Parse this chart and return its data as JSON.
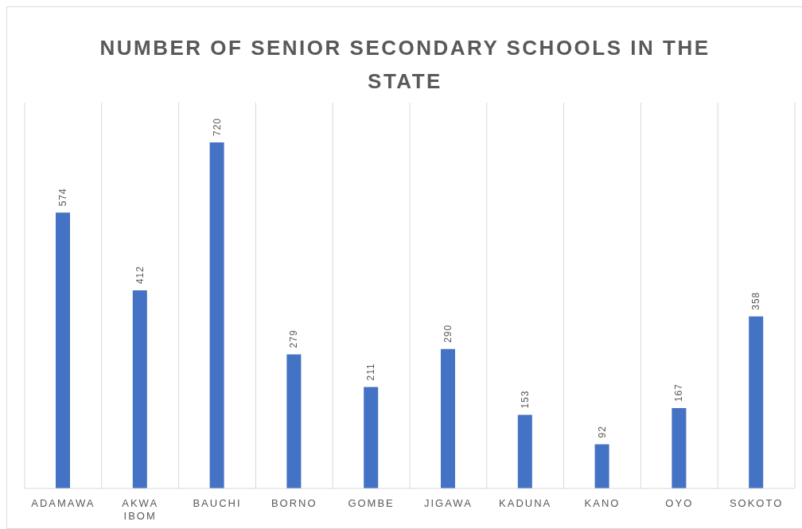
{
  "chart_data": {
    "type": "bar",
    "title": "NUMBER OF SENIOR SECONDARY SCHOOLS IN THE STATE",
    "categories": [
      "ADAMAWA",
      "AKWA IBOM",
      "BAUCHI",
      "BORNO",
      "GOMBE",
      "JIGAWA",
      "KADUNA",
      "KANO",
      "OYO",
      "SOKOTO"
    ],
    "values": [
      574,
      412,
      720,
      279,
      211,
      290,
      153,
      92,
      167,
      358
    ],
    "color": "#4472c4",
    "data_labels": true,
    "grid": "x"
  }
}
